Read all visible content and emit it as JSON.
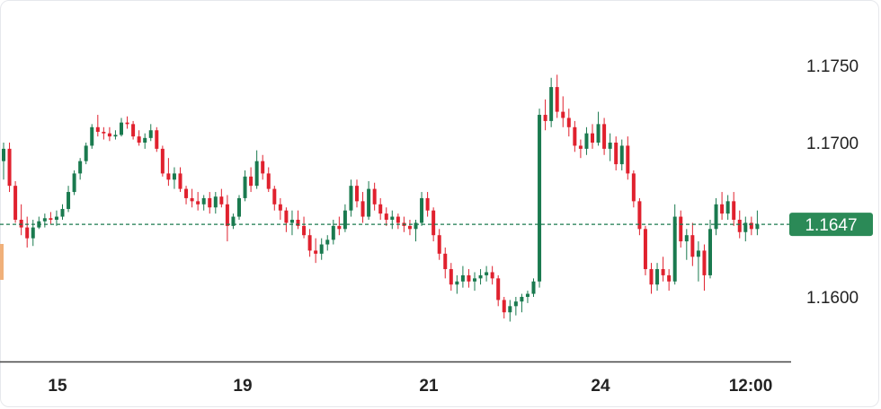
{
  "colors": {
    "up": "#1a7a4f",
    "down": "#e0212e",
    "current_price_line": "#1a7a4f",
    "current_price_badge": "#2b8a57",
    "axis_line": "#444444",
    "marker": "#f0b07a"
  },
  "chart_data": {
    "type": "candlestick",
    "title": "",
    "xlabel": "",
    "ylabel": "",
    "ylim": [
      1.156,
      1.178
    ],
    "y_ticks": [
      "1.1750",
      "1.1700",
      "1.1600"
    ],
    "x_ticks": [
      "15",
      "19",
      "21",
      "24",
      "12:00"
    ],
    "current_price": "1.1647",
    "series": [
      {
        "values": [
          [
            1.1688,
            1.17,
            1.1676,
            1.1696
          ],
          [
            1.1696,
            1.17,
            1.1668,
            1.1672
          ],
          [
            1.1672,
            1.1675,
            1.1648,
            1.165
          ],
          [
            1.165,
            1.166,
            1.164,
            1.1645
          ],
          [
            1.1645,
            1.1652,
            1.1632,
            1.1638
          ],
          [
            1.1638,
            1.165,
            1.1633,
            1.1645
          ],
          [
            1.1645,
            1.1652,
            1.1644,
            1.1649
          ],
          [
            1.1649,
            1.1654,
            1.1645,
            1.1651
          ],
          [
            1.1651,
            1.1655,
            1.1647,
            1.165
          ],
          [
            1.165,
            1.1656,
            1.1646,
            1.1652
          ],
          [
            1.1652,
            1.166,
            1.165,
            1.1657
          ],
          [
            1.1657,
            1.1672,
            1.1655,
            1.1668
          ],
          [
            1.1668,
            1.1682,
            1.1666,
            1.168
          ],
          [
            1.168,
            1.169,
            1.1676,
            1.1688
          ],
          [
            1.1688,
            1.17,
            1.1686,
            1.1698
          ],
          [
            1.1698,
            1.1712,
            1.1696,
            1.171
          ],
          [
            1.171,
            1.1718,
            1.1704,
            1.1707
          ],
          [
            1.1707,
            1.171,
            1.1702,
            1.1706
          ],
          [
            1.1706,
            1.171,
            1.1701,
            1.1704
          ],
          [
            1.1704,
            1.1708,
            1.1702,
            1.1705
          ],
          [
            1.1705,
            1.1716,
            1.1704,
            1.1713
          ],
          [
            1.1713,
            1.1717,
            1.1709,
            1.1712
          ],
          [
            1.1712,
            1.1714,
            1.1702,
            1.1704
          ],
          [
            1.1704,
            1.1708,
            1.1698,
            1.17
          ],
          [
            1.17,
            1.1706,
            1.1696,
            1.1703
          ],
          [
            1.1703,
            1.1712,
            1.1701,
            1.1708
          ],
          [
            1.1708,
            1.171,
            1.1694,
            1.1696
          ],
          [
            1.1696,
            1.1698,
            1.1678,
            1.168
          ],
          [
            1.168,
            1.169,
            1.1672,
            1.1676
          ],
          [
            1.1676,
            1.1684,
            1.167,
            1.168
          ],
          [
            1.168,
            1.1684,
            1.1668,
            1.167
          ],
          [
            1.167,
            1.1672,
            1.166,
            1.1664
          ],
          [
            1.1664,
            1.167,
            1.1658,
            1.1662
          ],
          [
            1.1662,
            1.1668,
            1.1656,
            1.166
          ],
          [
            1.166,
            1.1666,
            1.1656,
            1.1664
          ],
          [
            1.1664,
            1.1668,
            1.1654,
            1.1658
          ],
          [
            1.1658,
            1.1668,
            1.1654,
            1.1665
          ],
          [
            1.1665,
            1.167,
            1.1658,
            1.166
          ],
          [
            1.166,
            1.1666,
            1.1636,
            1.1646
          ],
          [
            1.1646,
            1.1654,
            1.1644,
            1.1652
          ],
          [
            1.1652,
            1.1666,
            1.165,
            1.1664
          ],
          [
            1.1664,
            1.1682,
            1.1662,
            1.1678
          ],
          [
            1.1678,
            1.1684,
            1.1668,
            1.1672
          ],
          [
            1.1672,
            1.1695,
            1.167,
            1.1688
          ],
          [
            1.1688,
            1.1692,
            1.1676,
            1.168
          ],
          [
            1.168,
            1.1684,
            1.1668,
            1.167
          ],
          [
            1.167,
            1.1672,
            1.1656,
            1.166
          ],
          [
            1.166,
            1.1664,
            1.165,
            1.1656
          ],
          [
            1.1656,
            1.1658,
            1.1642,
            1.1648
          ],
          [
            1.1648,
            1.1656,
            1.164,
            1.165
          ],
          [
            1.165,
            1.1656,
            1.1644,
            1.1646
          ],
          [
            1.1646,
            1.1652,
            1.1638,
            1.164
          ],
          [
            1.164,
            1.1644,
            1.1626,
            1.163
          ],
          [
            1.163,
            1.1638,
            1.1622,
            1.1628
          ],
          [
            1.1628,
            1.1638,
            1.1624,
            1.1634
          ],
          [
            1.1634,
            1.164,
            1.163,
            1.1637
          ],
          [
            1.1637,
            1.165,
            1.1634,
            1.1646
          ],
          [
            1.1646,
            1.1652,
            1.164,
            1.1644
          ],
          [
            1.1644,
            1.166,
            1.1642,
            1.1656
          ],
          [
            1.1656,
            1.1676,
            1.1652,
            1.1672
          ],
          [
            1.1672,
            1.1676,
            1.1658,
            1.1662
          ],
          [
            1.1662,
            1.1668,
            1.1648,
            1.1652
          ],
          [
            1.1652,
            1.1675,
            1.165,
            1.167
          ],
          [
            1.167,
            1.1674,
            1.1656,
            1.166
          ],
          [
            1.166,
            1.1664,
            1.165,
            1.1654
          ],
          [
            1.1654,
            1.1658,
            1.1646,
            1.165
          ],
          [
            1.165,
            1.1656,
            1.1644,
            1.1652
          ],
          [
            1.1652,
            1.1654,
            1.1644,
            1.1648
          ],
          [
            1.1648,
            1.1652,
            1.1642,
            1.1646
          ],
          [
            1.1646,
            1.165,
            1.164,
            1.1644
          ],
          [
            1.1644,
            1.165,
            1.1636,
            1.1648
          ],
          [
            1.1648,
            1.1668,
            1.1646,
            1.1664
          ],
          [
            1.1664,
            1.1668,
            1.1652,
            1.1656
          ],
          [
            1.1656,
            1.1658,
            1.1636,
            1.164
          ],
          [
            1.164,
            1.1644,
            1.1624,
            1.1628
          ],
          [
            1.1628,
            1.1632,
            1.1612,
            1.1618
          ],
          [
            1.1618,
            1.1622,
            1.1604,
            1.1608
          ],
          [
            1.1608,
            1.1614,
            1.1602,
            1.161
          ],
          [
            1.161,
            1.162,
            1.1606,
            1.1614
          ],
          [
            1.1614,
            1.1618,
            1.1606,
            1.161
          ],
          [
            1.161,
            1.1616,
            1.1604,
            1.1612
          ],
          [
            1.1612,
            1.1618,
            1.1608,
            1.1614
          ],
          [
            1.1614,
            1.162,
            1.161,
            1.1616
          ],
          [
            1.1616,
            1.162,
            1.1608,
            1.1612
          ],
          [
            1.1612,
            1.1614,
            1.1594,
            1.1598
          ],
          [
            1.1598,
            1.16,
            1.1586,
            1.159
          ],
          [
            1.159,
            1.1598,
            1.1584,
            1.1594
          ],
          [
            1.1594,
            1.16,
            1.1588,
            1.1597
          ],
          [
            1.1597,
            1.1602,
            1.159,
            1.16
          ],
          [
            1.16,
            1.1604,
            1.1596,
            1.1602
          ],
          [
            1.1602,
            1.1612,
            1.16,
            1.161
          ],
          [
            1.161,
            1.1722,
            1.1606,
            1.1718
          ],
          [
            1.1718,
            1.1728,
            1.1708,
            1.1714
          ],
          [
            1.1714,
            1.1742,
            1.171,
            1.1736
          ],
          [
            1.1736,
            1.1744,
            1.1716,
            1.172
          ],
          [
            1.172,
            1.173,
            1.171,
            1.1716
          ],
          [
            1.1716,
            1.1722,
            1.1704,
            1.171
          ],
          [
            1.171,
            1.1714,
            1.1694,
            1.1698
          ],
          [
            1.1698,
            1.1702,
            1.169,
            1.1696
          ],
          [
            1.1696,
            1.171,
            1.1692,
            1.1706
          ],
          [
            1.1706,
            1.1712,
            1.1696,
            1.17
          ],
          [
            1.17,
            1.172,
            1.1698,
            1.1712
          ],
          [
            1.1712,
            1.1716,
            1.1692,
            1.1696
          ],
          [
            1.1696,
            1.1706,
            1.1688,
            1.17
          ],
          [
            1.17,
            1.1704,
            1.1682,
            1.1686
          ],
          [
            1.1686,
            1.1702,
            1.1682,
            1.1698
          ],
          [
            1.1698,
            1.1704,
            1.1676,
            1.168
          ],
          [
            1.168,
            1.1682,
            1.1658,
            1.1662
          ],
          [
            1.1662,
            1.1664,
            1.164,
            1.1644
          ],
          [
            1.1644,
            1.1646,
            1.1614,
            1.1618
          ],
          [
            1.1618,
            1.1622,
            1.1602,
            1.1608
          ],
          [
            1.1608,
            1.1622,
            1.1604,
            1.1618
          ],
          [
            1.1618,
            1.1626,
            1.161,
            1.1614
          ],
          [
            1.1614,
            1.1618,
            1.1604,
            1.161
          ],
          [
            1.161,
            1.166,
            1.1608,
            1.1652
          ],
          [
            1.1652,
            1.1656,
            1.1632,
            1.1636
          ],
          [
            1.1636,
            1.1644,
            1.1624,
            1.164
          ],
          [
            1.164,
            1.1648,
            1.162,
            1.1626
          ],
          [
            1.1626,
            1.1636,
            1.161,
            1.163
          ],
          [
            1.163,
            1.1634,
            1.1604,
            1.1614
          ],
          [
            1.1614,
            1.165,
            1.1612,
            1.1644
          ],
          [
            1.1644,
            1.1664,
            1.164,
            1.166
          ],
          [
            1.166,
            1.1668,
            1.165,
            1.1654
          ],
          [
            1.1654,
            1.1666,
            1.165,
            1.1662
          ],
          [
            1.1662,
            1.1668,
            1.1646,
            1.165
          ],
          [
            1.165,
            1.1656,
            1.1638,
            1.1642
          ],
          [
            1.1642,
            1.1652,
            1.1636,
            1.1648
          ],
          [
            1.1648,
            1.1652,
            1.164,
            1.1644
          ],
          [
            1.1644,
            1.1656,
            1.164,
            1.1647
          ]
        ]
      }
    ]
  }
}
